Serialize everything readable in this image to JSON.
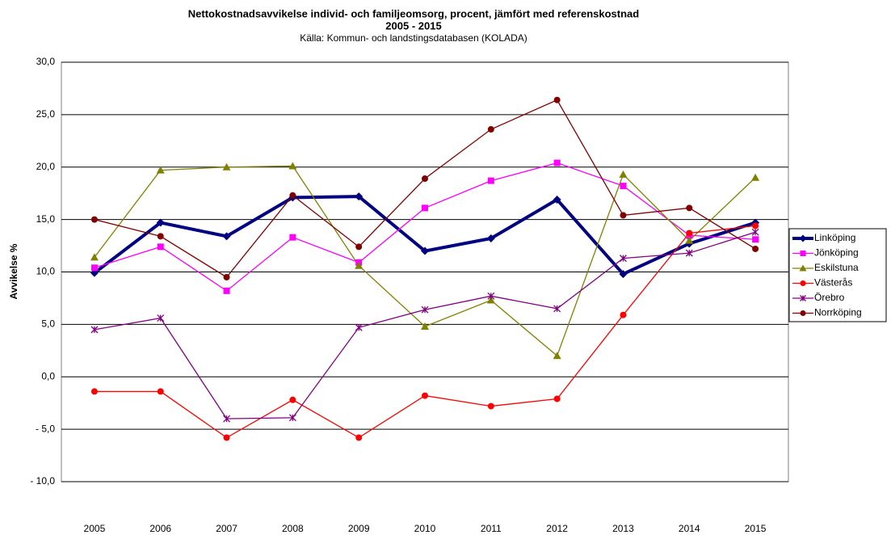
{
  "chart_data": {
    "type": "line",
    "title": [
      "Nettokostnadsavvikelse individ- och familjeomsorg, procent, jämfört med referenskostnad",
      "2005 - 2015"
    ],
    "subtitle": "Källa: Kommun- och landstingsdatabasen (KOLADA)",
    "y_label": "Avvikelse %",
    "categories": [
      "2005",
      "2006",
      "2007",
      "2008",
      "2009",
      "2010",
      "2011",
      "2012",
      "2013",
      "2014",
      "2015"
    ],
    "series": [
      {
        "name": "Linköping",
        "color": "#000080",
        "marker": "diamond",
        "values": [
          9.9,
          14.7,
          13.4,
          17.1,
          17.2,
          12.0,
          13.2,
          16.9,
          9.8,
          12.7,
          14.7
        ]
      },
      {
        "name": "Jönköping",
        "color": "#ff00ff",
        "marker": "square",
        "values": [
          10.4,
          12.4,
          8.2,
          13.3,
          10.9,
          16.1,
          18.7,
          20.4,
          18.2,
          13.5,
          13.1
        ]
      },
      {
        "name": "Eskilstuna",
        "color": "#808000",
        "marker": "triangle",
        "values": [
          11.4,
          19.7,
          20.0,
          20.1,
          10.6,
          4.8,
          7.3,
          2.0,
          19.3,
          13.0,
          19.0
        ]
      },
      {
        "name": "Västerås",
        "color": "#ff0000",
        "marker": "circle",
        "values": [
          -1.4,
          -1.4,
          -5.8,
          -2.2,
          -5.8,
          -1.8,
          -2.8,
          -2.1,
          5.9,
          13.7,
          14.4
        ]
      },
      {
        "name": "Örebro",
        "color": "#800080",
        "marker": "star",
        "values": [
          4.5,
          5.6,
          -4.0,
          -3.9,
          4.7,
          6.4,
          7.7,
          6.5,
          11.3,
          11.8,
          13.8
        ]
      },
      {
        "name": "Norrköping",
        "color": "#800000",
        "marker": "circle",
        "values": [
          15.0,
          13.4,
          9.5,
          17.3,
          12.4,
          18.9,
          23.6,
          26.4,
          15.4,
          16.1,
          12.2
        ]
      }
    ],
    "ylim": [
      -10,
      30
    ],
    "yticks": [
      {
        "value": -10,
        "label": "- 10,0"
      },
      {
        "value": -5,
        "label": "- 5,0"
      },
      {
        "value": 0,
        "label": "0,0"
      },
      {
        "value": 5,
        "label": "5,0"
      },
      {
        "value": 10,
        "label": "10,0"
      },
      {
        "value": 15,
        "label": "15,0"
      },
      {
        "value": 20,
        "label": "20,0"
      },
      {
        "value": 25,
        "label": "25,0"
      },
      {
        "value": 30,
        "label": "30,0"
      }
    ],
    "grid": true,
    "legend": "right"
  }
}
